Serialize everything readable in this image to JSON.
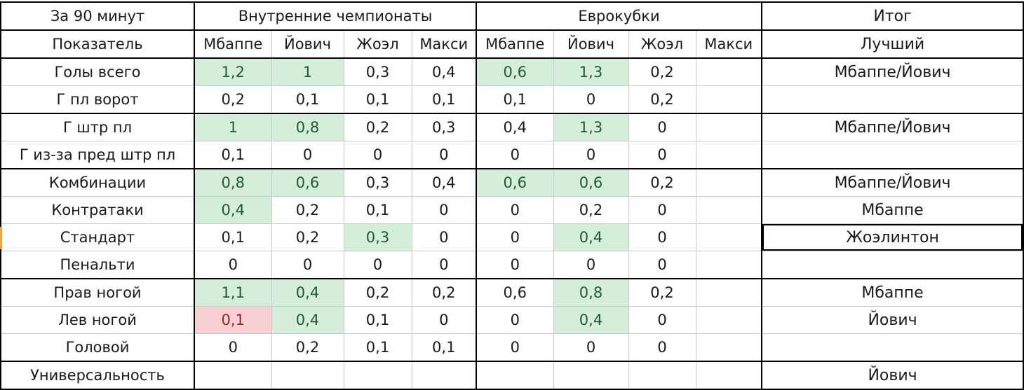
{
  "header": {
    "per90": "За 90 минут",
    "domestic": "Внутренние чемпионаты",
    "euro": "Еврокубки",
    "result": "Итог"
  },
  "subheader": {
    "metric": "Показатель",
    "domestic_players": [
      "Мбаппе",
      "Йович",
      "Жоэл",
      "Макси"
    ],
    "euro_players": [
      "Мбаппе",
      "Йович",
      "Жоэл",
      "Макси"
    ],
    "best": "Лучший"
  },
  "highlight_colors": {
    "good": "#d5eeda",
    "bad": "#f8cfd2",
    "active_row_marker": "#f2a33a"
  },
  "rows": [
    {
      "label": "Голы всего",
      "dom": [
        "1,2",
        "1",
        "0,3",
        "0,4"
      ],
      "euro": [
        "0,6",
        "1,3",
        "0,2",
        ""
      ],
      "best": "Мбаппе/Йович",
      "dom_hl": [
        "good",
        "good",
        "",
        ""
      ],
      "euro_hl": [
        "good",
        "good",
        "",
        ""
      ]
    },
    {
      "label": "Г пл ворот",
      "dom": [
        "0,2",
        "0,1",
        "0,1",
        "0,1"
      ],
      "euro": [
        "0,1",
        "0",
        "0,2",
        ""
      ],
      "best": "",
      "dom_hl": [
        "",
        "",
        "",
        ""
      ],
      "euro_hl": [
        "",
        "",
        "",
        ""
      ]
    },
    {
      "label": "Г штр пл",
      "dom": [
        "1",
        "0,8",
        "0,2",
        "0,3"
      ],
      "euro": [
        "0,4",
        "1,3",
        "0",
        ""
      ],
      "best": "Мбаппе/Йович",
      "dom_hl": [
        "good",
        "good",
        "",
        ""
      ],
      "euro_hl": [
        "",
        "good",
        "",
        ""
      ]
    },
    {
      "label": "Г из-за пред штр пл",
      "dom": [
        "0,1",
        "0",
        "0",
        "0"
      ],
      "euro": [
        "0",
        "0",
        "0",
        ""
      ],
      "best": "",
      "dom_hl": [
        "",
        "",
        "",
        ""
      ],
      "euro_hl": [
        "",
        "",
        "",
        ""
      ]
    },
    {
      "label": "Комбинации",
      "dom": [
        "0,8",
        "0,6",
        "0,3",
        "0,4"
      ],
      "euro": [
        "0,6",
        "0,6",
        "0,2",
        ""
      ],
      "best": "Мбаппе/Йович",
      "dom_hl": [
        "good",
        "good",
        "",
        ""
      ],
      "euro_hl": [
        "good",
        "good",
        "",
        ""
      ]
    },
    {
      "label": "Контратаки",
      "dom": [
        "0,4",
        "0,2",
        "0,1",
        "0"
      ],
      "euro": [
        "0",
        "0,2",
        "0",
        ""
      ],
      "best": "Мбаппе",
      "dom_hl": [
        "good",
        "",
        "",
        ""
      ],
      "euro_hl": [
        "",
        "",
        "",
        ""
      ]
    },
    {
      "label": "Стандарт",
      "dom": [
        "0,1",
        "0,2",
        "0,3",
        "0"
      ],
      "euro": [
        "0",
        "0,4",
        "0",
        ""
      ],
      "best": "Жоэлинтон",
      "dom_hl": [
        "",
        "",
        "good",
        ""
      ],
      "euro_hl": [
        "",
        "good",
        "",
        ""
      ]
    },
    {
      "label": "Пенальти",
      "dom": [
        "0",
        "0",
        "0",
        "0"
      ],
      "euro": [
        "0",
        "0",
        "0",
        ""
      ],
      "best": "",
      "dom_hl": [
        "",
        "",
        "",
        ""
      ],
      "euro_hl": [
        "",
        "",
        "",
        ""
      ]
    },
    {
      "label": "Прав ногой",
      "dom": [
        "1,1",
        "0,4",
        "0,2",
        "0,2"
      ],
      "euro": [
        "0,6",
        "0,8",
        "0,2",
        ""
      ],
      "best": "Мбаппе",
      "dom_hl": [
        "good",
        "good",
        "",
        ""
      ],
      "euro_hl": [
        "",
        "good",
        "",
        ""
      ]
    },
    {
      "label": "Лев ногой",
      "dom": [
        "0,1",
        "0,4",
        "0,1",
        "0"
      ],
      "euro": [
        "0",
        "0,4",
        "0",
        ""
      ],
      "best": "Йович",
      "dom_hl": [
        "bad",
        "good",
        "",
        ""
      ],
      "euro_hl": [
        "",
        "good",
        "",
        ""
      ]
    },
    {
      "label": "Головой",
      "dom": [
        "0",
        "0,2",
        "0,1",
        "0,1"
      ],
      "euro": [
        "0",
        "0",
        "0",
        ""
      ],
      "best": "",
      "dom_hl": [
        "",
        "",
        "",
        ""
      ],
      "euro_hl": [
        "",
        "",
        "",
        ""
      ]
    },
    {
      "label": "Универсальность",
      "dom": [
        "",
        "",
        "",
        ""
      ],
      "euro": [
        "",
        "",
        "",
        ""
      ],
      "best": "Йович",
      "dom_hl": [
        "",
        "",
        "",
        ""
      ],
      "euro_hl": [
        "",
        "",
        "",
        ""
      ]
    }
  ]
}
